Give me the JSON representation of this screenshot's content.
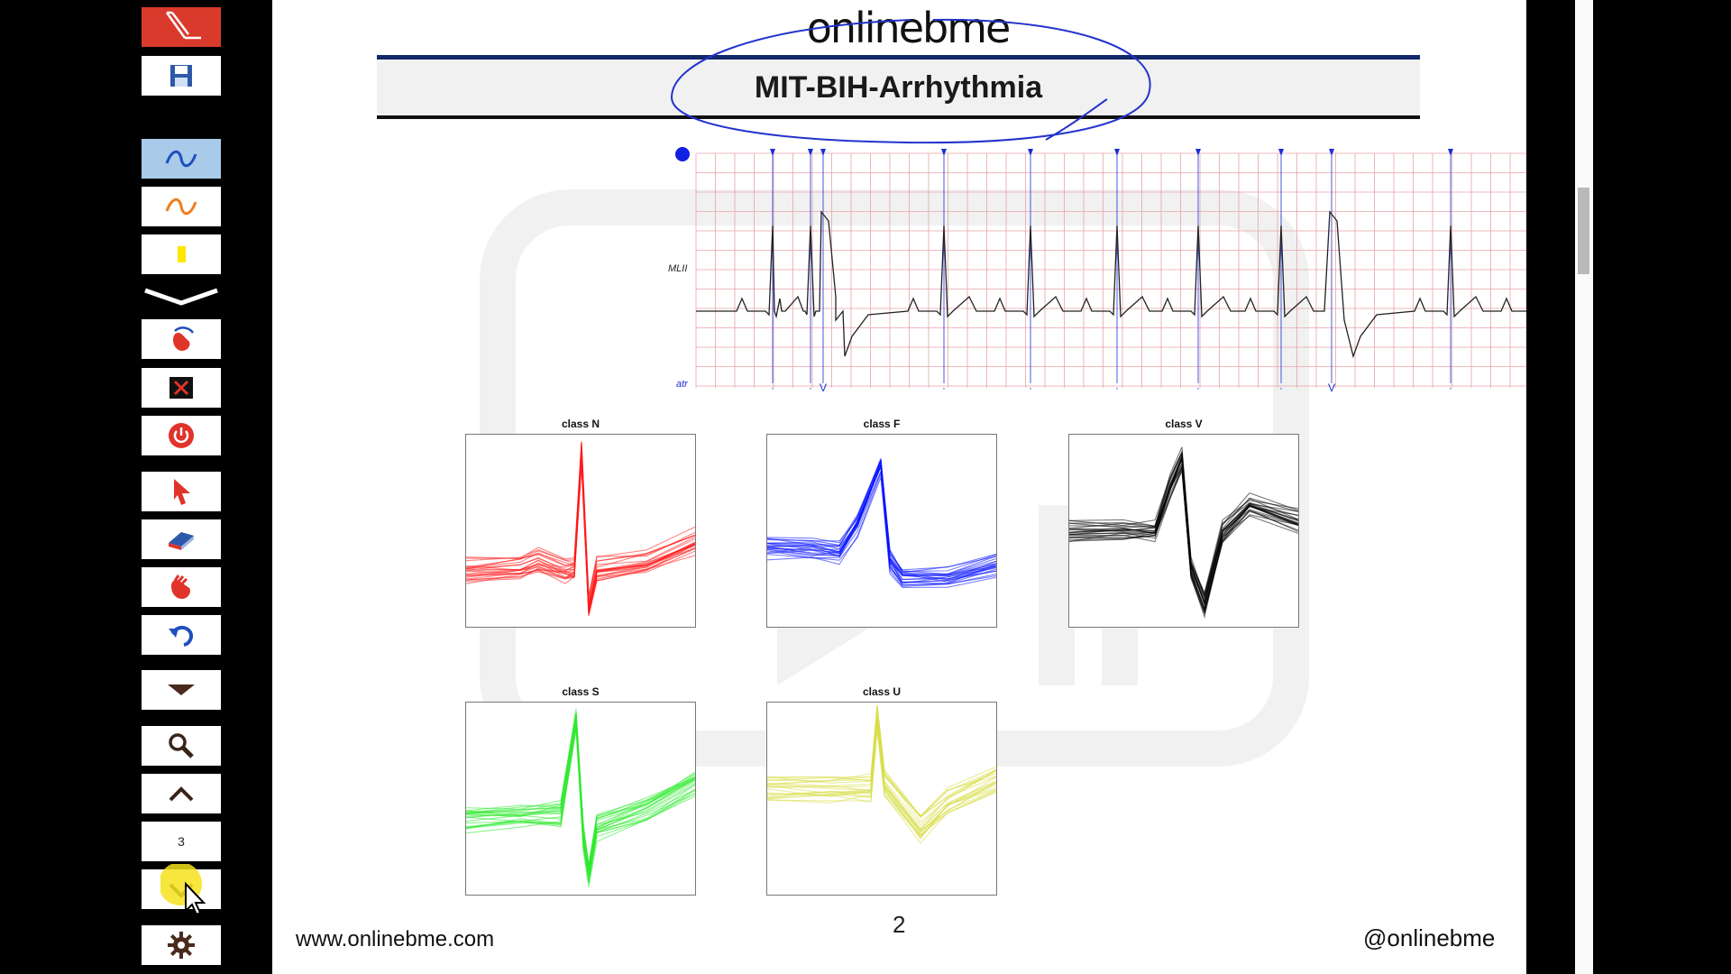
{
  "toolbar": {
    "page_number": "3",
    "icons": [
      "pen-logo-icon",
      "save-icon",
      "blue-pen-icon",
      "orange-pen-icon",
      "yellow-highlighter-icon",
      "collapse-chevron-icon",
      "hand-laser-icon",
      "clear-ink-icon",
      "power-icon",
      "pointer-arrow-icon",
      "eraser-icon",
      "hand-icon",
      "undo-icon",
      "triangle-down-icon",
      "search-icon",
      "chevron-up-icon",
      "chevron-down-icon",
      "gear-icon"
    ]
  },
  "page": {
    "logo": "onlinebme",
    "title": "MIT-BIH-Arrhythmia",
    "footer_url": "www.onlinebme.com",
    "footer_page": "2",
    "footer_handle": "@onlinebme"
  },
  "ecg": {
    "lead_label": "MLII",
    "annotation_label": "atr",
    "beat_labels": [
      "·",
      "·",
      "V",
      "·",
      "·",
      "·",
      "·",
      "·",
      "V",
      "·",
      "·"
    ],
    "beat_types": [
      "N",
      "N",
      "V",
      "N",
      "N",
      "N",
      "N",
      "N",
      "V",
      "N",
      "N"
    ],
    "grid_color": "#e8a3a9",
    "marker_color": "#1a2fd6"
  },
  "panels": [
    {
      "title": "class N",
      "color": "#ff1a1a"
    },
    {
      "title": "class F",
      "color": "#0a14ff"
    },
    {
      "title": "class V",
      "color": "#000000"
    },
    {
      "title": "class S",
      "color": "#2eea2e"
    },
    {
      "title": "class U",
      "color": "#d9df4a"
    }
  ],
  "colors": {
    "toolbar_active": "#a9cbe9",
    "brand_red": "#d93a2b",
    "title_rule": "#12286b",
    "ink": "#2233cc"
  }
}
